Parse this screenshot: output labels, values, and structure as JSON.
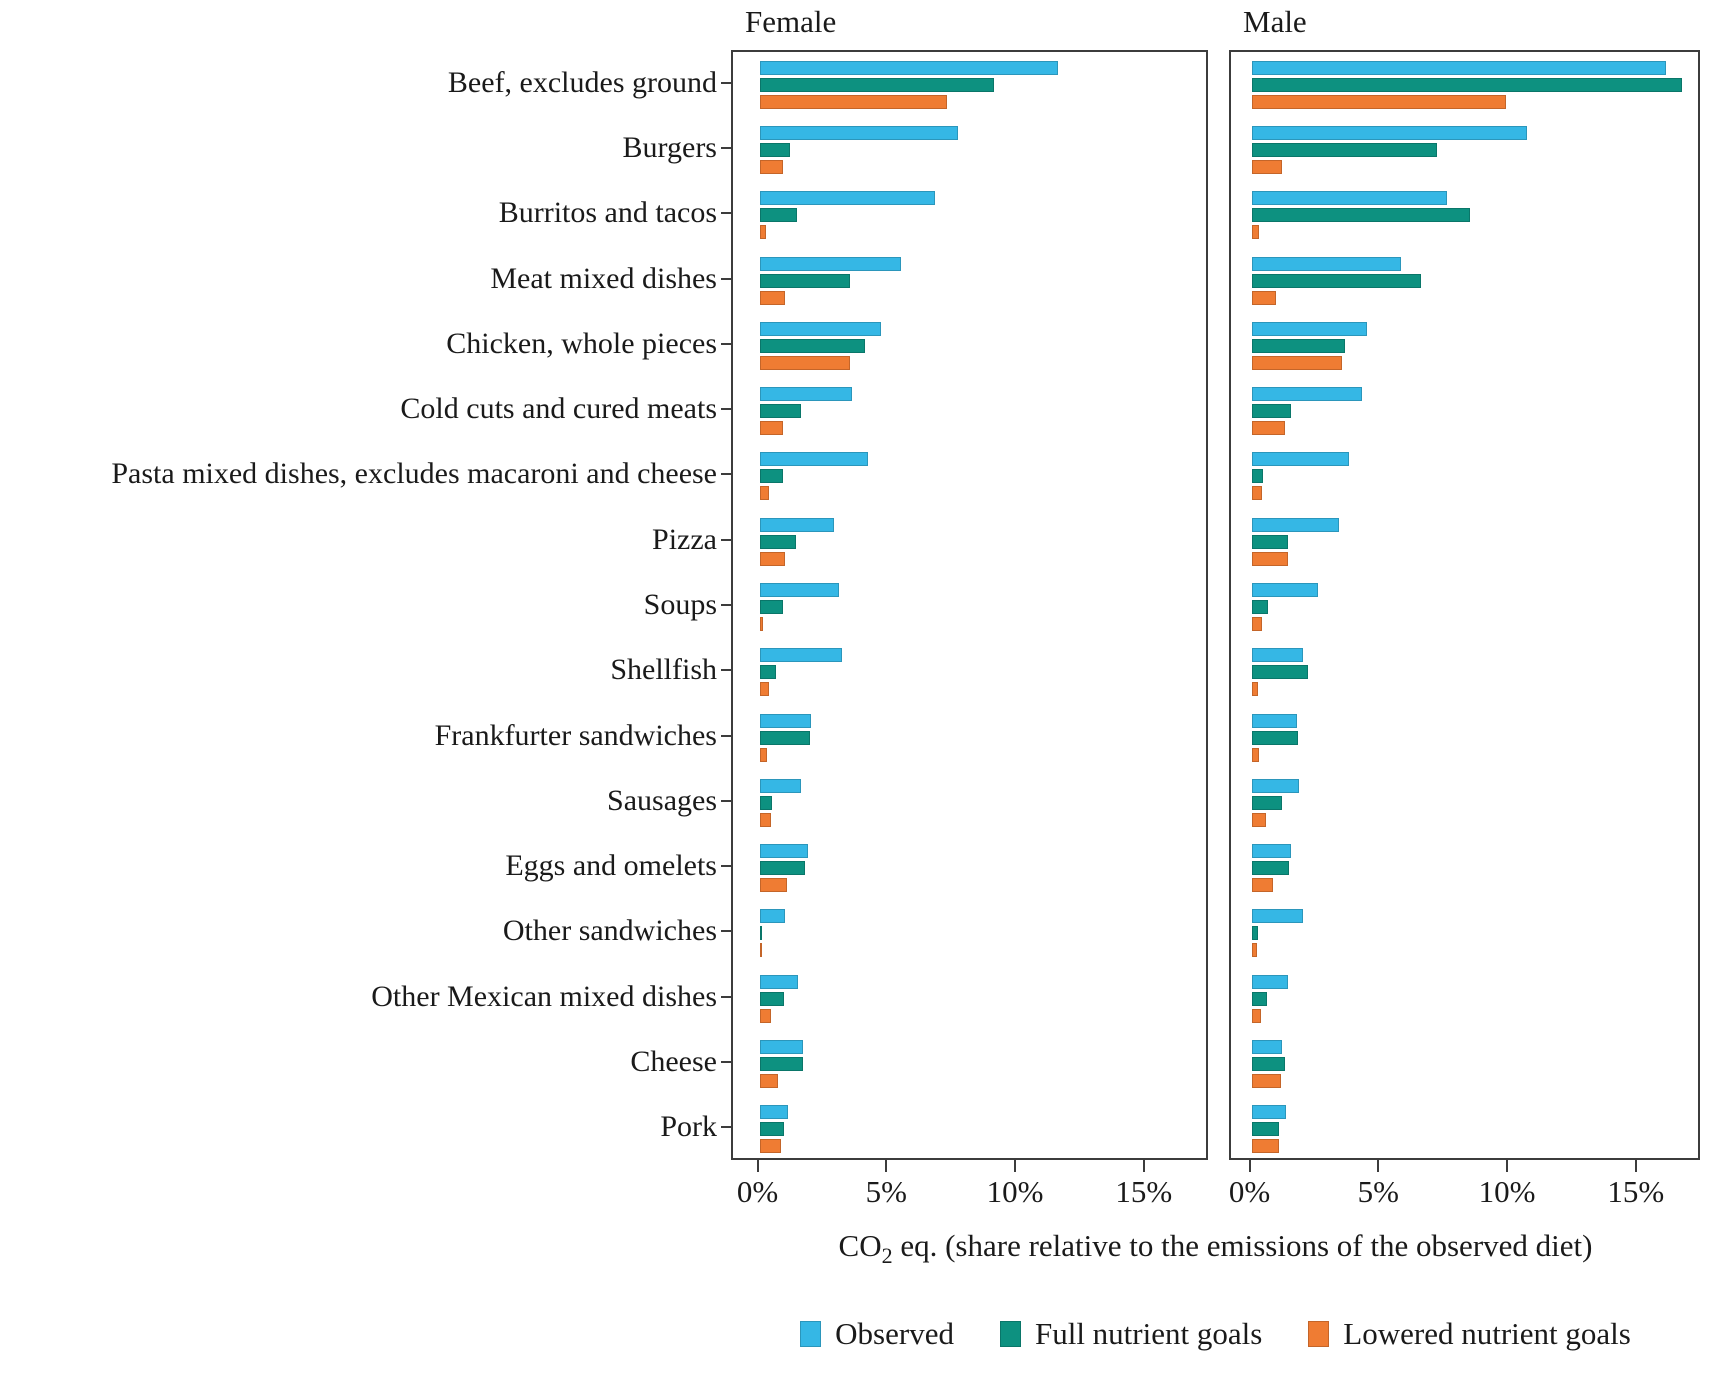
{
  "chart_data": {
    "type": "bar",
    "orientation": "horizontal",
    "title": "",
    "xlabel": "CO2 eq. (share relative to the emissions of the observed diet)",
    "xlabel_parts": {
      "prefix": "CO",
      "sub": "2",
      "suffix": " eq. (share relative to the emissions of the observed diet)"
    },
    "x_ticks": [
      {
        "value": 0,
        "label": "0%"
      },
      {
        "value": 5,
        "label": "5%"
      },
      {
        "value": 10,
        "label": "10%"
      },
      {
        "value": 15,
        "label": "15%"
      }
    ],
    "xlim": [
      -1.0,
      17.5
    ],
    "grid": false,
    "legend_position": "bottom",
    "categories": [
      "Beef, excludes ground",
      "Burgers",
      "Burritos and tacos",
      "Meat mixed dishes",
      "Chicken, whole pieces",
      "Cold cuts and cured meats",
      "Pasta mixed dishes, excludes macaroni and cheese",
      "Pizza",
      "Soups",
      "Shellfish",
      "Frankfurter sandwiches",
      "Sausages",
      "Eggs and omelets",
      "Other sandwiches",
      "Other Mexican mixed dishes",
      "Cheese",
      "Pork"
    ],
    "series_meta": [
      {
        "name": "Observed",
        "color": "#35b7e5"
      },
      {
        "name": "Full nutrient goals",
        "color": "#0d9180"
      },
      {
        "name": "Lowered nutrient goals",
        "color": "#ef7c33"
      }
    ],
    "panels": [
      {
        "title": "Female",
        "series": [
          {
            "name": "Observed",
            "values": [
              11.6,
              7.7,
              6.8,
              5.5,
              4.7,
              3.6,
              4.2,
              2.9,
              3.1,
              3.2,
              2.0,
              1.6,
              1.9,
              1.0,
              1.5,
              1.7,
              1.1
            ]
          },
          {
            "name": "Full nutrient goals",
            "values": [
              9.1,
              1.2,
              1.45,
              3.5,
              4.1,
              1.6,
              0.9,
              1.4,
              0.9,
              0.65,
              1.95,
              0.5,
              1.75,
              0.1,
              0.95,
              1.7,
              0.95
            ]
          },
          {
            "name": "Lowered nutrient goals",
            "values": [
              7.3,
              0.9,
              0.25,
              1.0,
              3.5,
              0.9,
              0.35,
              1.0,
              0.15,
              0.35,
              0.3,
              0.45,
              1.05,
              0.07,
              0.45,
              0.7,
              0.85
            ]
          }
        ]
      },
      {
        "title": "Male",
        "series": [
          {
            "name": "Observed",
            "values": [
              16.1,
              10.7,
              7.6,
              5.8,
              4.5,
              4.3,
              3.8,
              3.4,
              2.6,
              2.0,
              1.75,
              1.85,
              1.55,
              2.0,
              1.4,
              1.2,
              1.35
            ]
          },
          {
            "name": "Full nutrient goals",
            "values": [
              16.7,
              7.2,
              8.5,
              6.6,
              3.65,
              1.55,
              0.45,
              1.4,
              0.65,
              2.2,
              1.8,
              1.2,
              1.45,
              0.25,
              0.6,
              1.3,
              1.05
            ]
          },
          {
            "name": "Lowered nutrient goals",
            "values": [
              9.9,
              1.2,
              0.3,
              0.95,
              3.5,
              1.3,
              0.4,
              1.4,
              0.4,
              0.25,
              0.3,
              0.55,
              0.85,
              0.22,
              0.35,
              1.15,
              1.05
            ]
          }
        ]
      }
    ]
  }
}
